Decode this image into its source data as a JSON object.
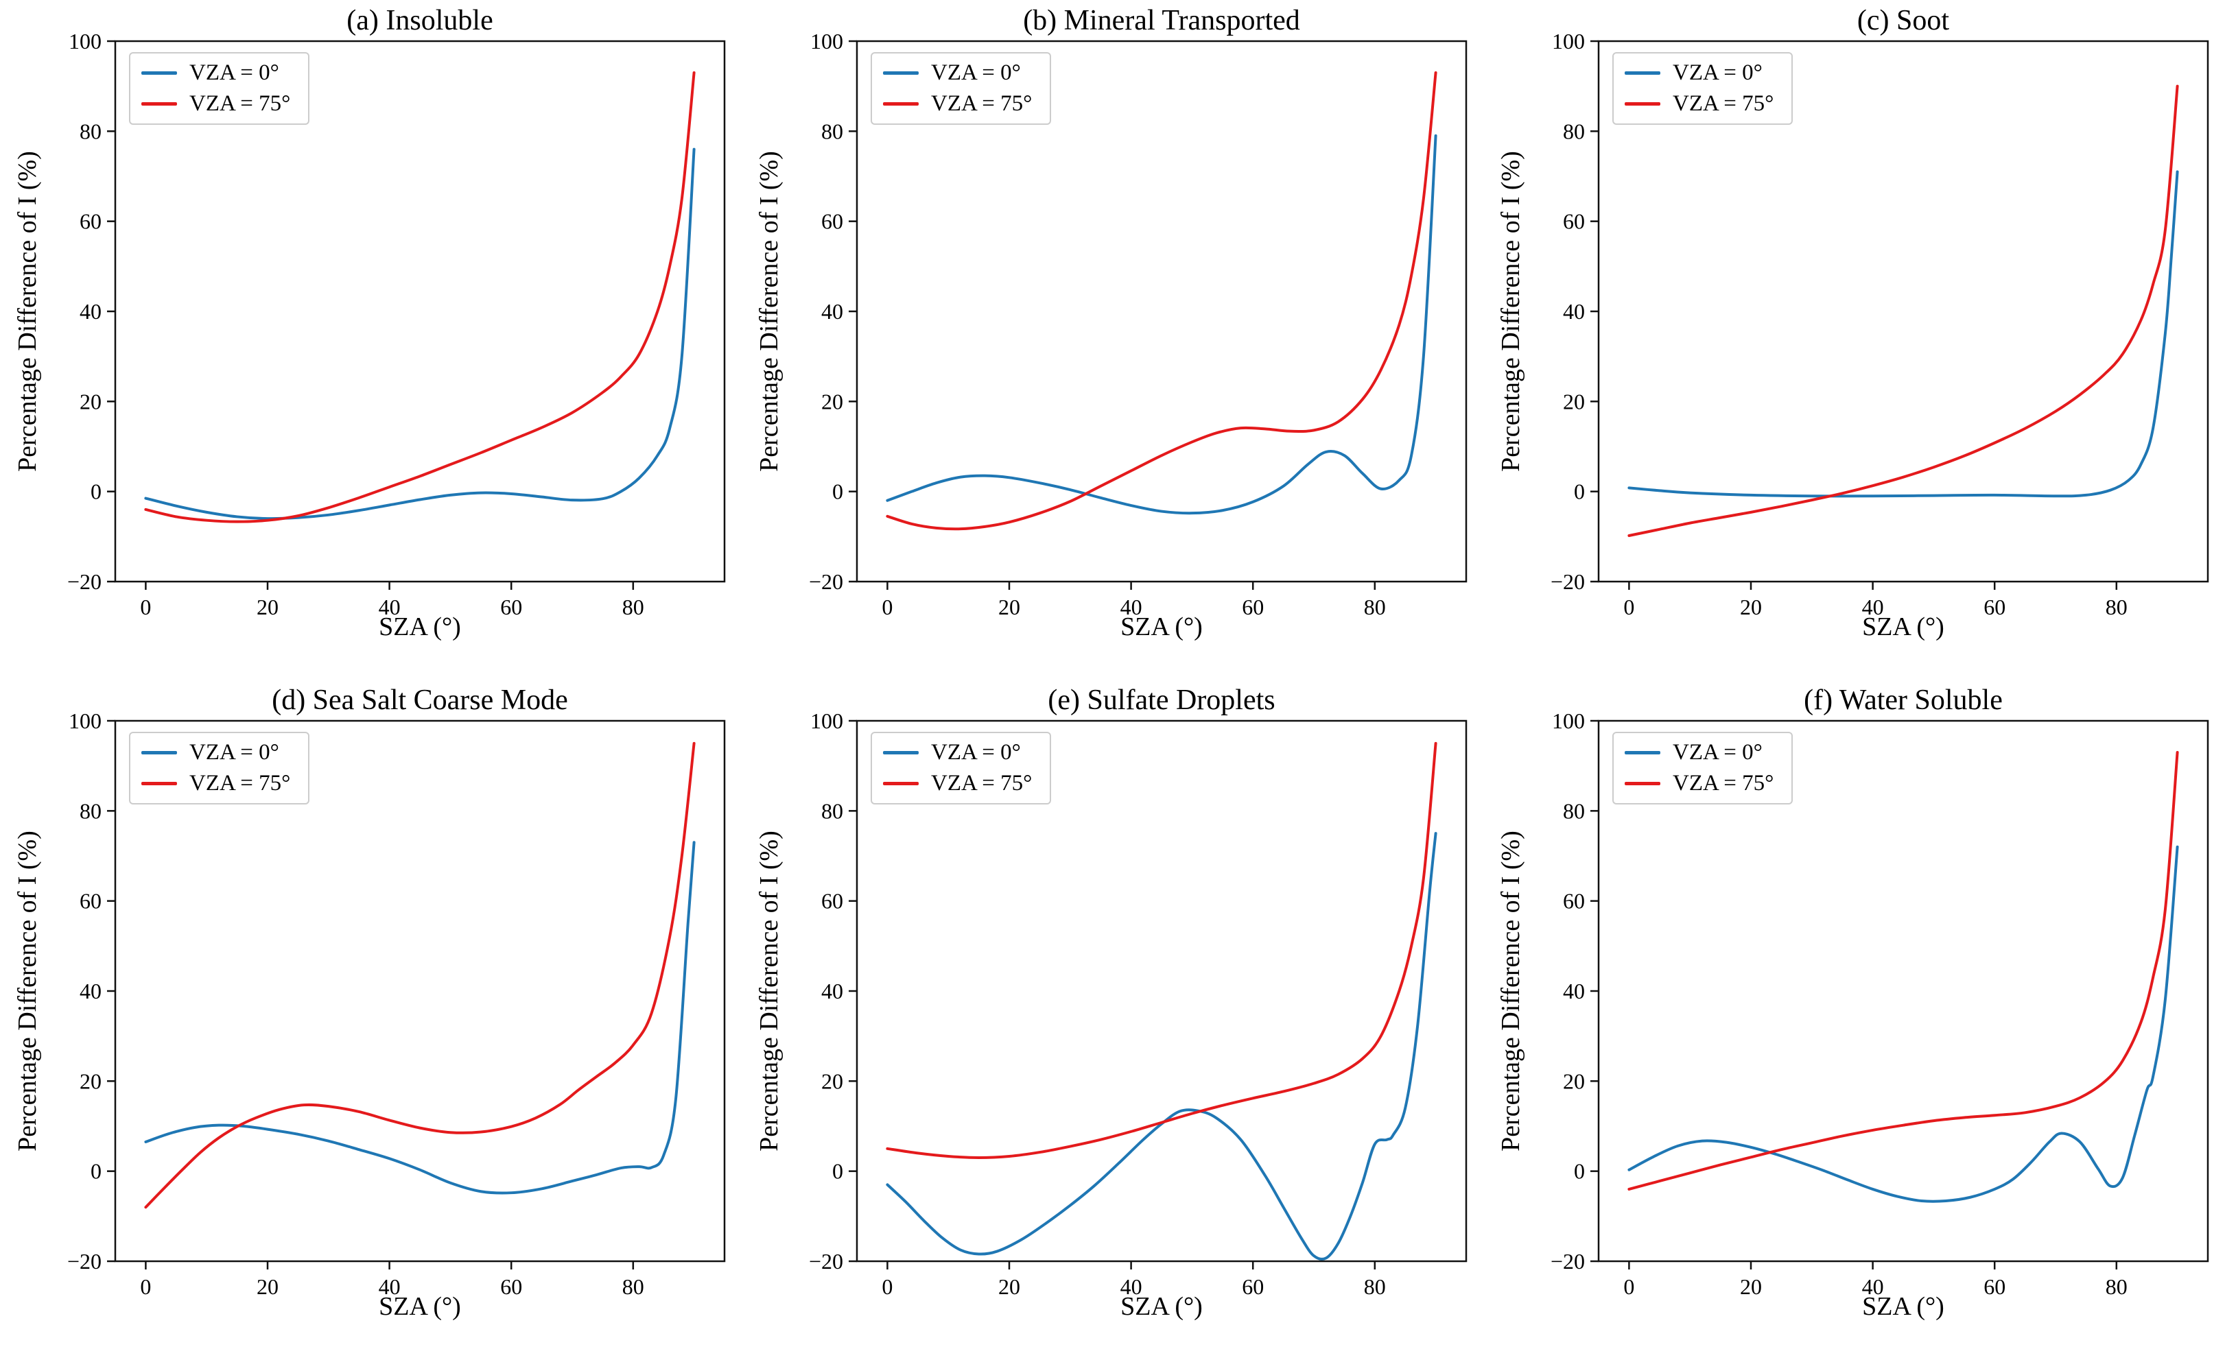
{
  "figure": {
    "ylabel": "Percentage Difference of I (%)",
    "xlabel": "SZA (°)",
    "colors": {
      "vza0": "#1f77b4",
      "vza75": "#e41a1c",
      "axis": "#111111"
    }
  },
  "chart_data": [
    {
      "type": "line",
      "title": "(a) Insoluble",
      "xlabel": "SZA (°)",
      "ylabel": "Percentage Difference of I (%)",
      "xlim": [
        -5,
        95
      ],
      "ylim": [
        -20,
        100
      ],
      "xticks": [
        0,
        20,
        40,
        60,
        80
      ],
      "yticks": [
        -20,
        0,
        20,
        40,
        60,
        80,
        100
      ],
      "grid": false,
      "legend_position": "upper left",
      "series": [
        {
          "name": "VZA = 0°",
          "color": "#1f77b4",
          "x": [
            0,
            5,
            10,
            15,
            20,
            25,
            30,
            35,
            40,
            45,
            50,
            55,
            60,
            65,
            70,
            75,
            78,
            81,
            84,
            86,
            88,
            90
          ],
          "y": [
            -1.5,
            -3.2,
            -4.6,
            -5.6,
            -6,
            -5.8,
            -5.2,
            -4.2,
            -3,
            -1.8,
            -0.8,
            -0.3,
            -0.5,
            -1.2,
            -1.9,
            -1.6,
            0,
            3,
            8,
            14,
            30,
            76
          ]
        },
        {
          "name": "VZA = 75°",
          "color": "#e41a1c",
          "x": [
            0,
            5,
            10,
            15,
            20,
            25,
            30,
            35,
            40,
            45,
            50,
            55,
            60,
            65,
            70,
            75,
            78,
            81,
            84,
            86,
            88,
            90
          ],
          "y": [
            -4,
            -5.6,
            -6.4,
            -6.7,
            -6.4,
            -5.4,
            -3.6,
            -1.4,
            1,
            3.4,
            6,
            8.6,
            11.4,
            14.2,
            17.5,
            22,
            25.5,
            30.5,
            40,
            50,
            65,
            93
          ]
        }
      ]
    },
    {
      "type": "line",
      "title": "(b) Mineral Transported",
      "xlabel": "SZA (°)",
      "ylabel": "Percentage Difference of I (%)",
      "xlim": [
        -5,
        95
      ],
      "ylim": [
        -20,
        100
      ],
      "xticks": [
        0,
        20,
        40,
        60,
        80
      ],
      "yticks": [
        -20,
        0,
        20,
        40,
        60,
        80,
        100
      ],
      "grid": false,
      "legend_position": "upper left",
      "series": [
        {
          "name": "VZA = 0°",
          "color": "#1f77b4",
          "x": [
            0,
            4,
            8,
            12,
            16,
            20,
            25,
            30,
            35,
            40,
            45,
            50,
            55,
            60,
            65,
            69,
            72,
            75,
            78,
            81,
            84,
            86,
            88,
            90
          ],
          "y": [
            -2,
            0,
            1.9,
            3.2,
            3.5,
            3.1,
            1.9,
            0.4,
            -1.4,
            -3.1,
            -4.4,
            -4.8,
            -4.2,
            -2.3,
            1.2,
            6,
            8.8,
            8,
            4,
            0.6,
            2.5,
            8,
            30,
            79
          ]
        },
        {
          "name": "VZA = 75°",
          "color": "#e41a1c",
          "x": [
            0,
            4,
            8,
            12,
            16,
            20,
            25,
            30,
            35,
            40,
            45,
            50,
            54,
            58,
            62,
            66,
            70,
            74,
            78,
            81,
            84,
            86,
            88,
            90
          ],
          "y": [
            -5.5,
            -7.2,
            -8.1,
            -8.3,
            -7.8,
            -6.8,
            -4.8,
            -2.2,
            1.2,
            4.6,
            8,
            11,
            13,
            14.1,
            13.9,
            13.4,
            13.6,
            15.5,
            20.5,
            27,
            37,
            48,
            65,
            93
          ]
        }
      ]
    },
    {
      "type": "line",
      "title": "(c) Soot",
      "xlabel": "SZA (°)",
      "ylabel": "Percentage Difference of I (%)",
      "xlim": [
        -5,
        95
      ],
      "ylim": [
        -20,
        100
      ],
      "xticks": [
        0,
        20,
        40,
        60,
        80
      ],
      "yticks": [
        -20,
        0,
        20,
        40,
        60,
        80,
        100
      ],
      "grid": false,
      "legend_position": "upper left",
      "series": [
        {
          "name": "VZA = 0°",
          "color": "#1f77b4",
          "x": [
            0,
            5,
            10,
            20,
            30,
            40,
            50,
            60,
            70,
            75,
            79,
            82,
            84,
            86,
            88,
            89,
            90
          ],
          "y": [
            0.8,
            0.2,
            -0.3,
            -0.8,
            -1,
            -1,
            -0.9,
            -0.8,
            -1,
            -0.8,
            0.3,
            2.5,
            6,
            14,
            35,
            52,
            71
          ]
        },
        {
          "name": "VZA = 75°",
          "color": "#e41a1c",
          "x": [
            0,
            5,
            10,
            15,
            20,
            25,
            30,
            35,
            40,
            45,
            50,
            55,
            60,
            65,
            70,
            74,
            78,
            81,
            84,
            86,
            88,
            90
          ],
          "y": [
            -9.8,
            -8.4,
            -7,
            -5.8,
            -4.6,
            -3.3,
            -1.9,
            -0.4,
            1.3,
            3.2,
            5.4,
            7.9,
            10.8,
            14,
            17.8,
            21.5,
            26,
            30.5,
            38,
            46,
            58,
            90
          ]
        }
      ]
    },
    {
      "type": "line",
      "title": "(d) Sea Salt Coarse Mode",
      "xlabel": "SZA (°)",
      "ylabel": "Percentage Difference of I (%)",
      "xlim": [
        -5,
        95
      ],
      "ylim": [
        -20,
        100
      ],
      "xticks": [
        0,
        20,
        40,
        60,
        80
      ],
      "yticks": [
        -20,
        0,
        20,
        40,
        60,
        80,
        100
      ],
      "grid": false,
      "legend_position": "upper left",
      "series": [
        {
          "name": "VZA = 0°",
          "color": "#1f77b4",
          "x": [
            0,
            4,
            8,
            12,
            16,
            20,
            25,
            30,
            35,
            40,
            45,
            50,
            55,
            60,
            65,
            70,
            74,
            78,
            81,
            83,
            85,
            87,
            89,
            90
          ],
          "y": [
            6.5,
            8.4,
            9.7,
            10.2,
            10,
            9.3,
            8.2,
            6.7,
            4.8,
            2.8,
            0.3,
            -2.6,
            -4.5,
            -4.8,
            -3.9,
            -2.2,
            -0.8,
            0.7,
            1,
            0.8,
            3.5,
            16,
            55,
            73
          ]
        },
        {
          "name": "VZA = 75°",
          "color": "#e41a1c",
          "x": [
            0,
            3,
            6,
            9,
            12,
            15,
            18,
            22,
            26,
            30,
            35,
            40,
            45,
            50,
            55,
            60,
            64,
            68,
            71,
            74,
            77,
            80,
            83,
            86,
            88,
            90
          ],
          "y": [
            -8,
            -3.8,
            0.3,
            4.2,
            7.4,
            9.9,
            11.8,
            13.7,
            14.7,
            14.4,
            13.2,
            11.3,
            9.6,
            8.6,
            8.7,
            9.9,
            11.8,
            14.8,
            18,
            21,
            24,
            28,
            35,
            52,
            70,
            95
          ]
        }
      ]
    },
    {
      "type": "line",
      "title": "(e) Sulfate Droplets",
      "xlabel": "SZA (°)",
      "ylabel": "Percentage Difference of I (%)",
      "xlim": [
        -5,
        95
      ],
      "ylim": [
        -20,
        100
      ],
      "xticks": [
        0,
        20,
        40,
        60,
        80
      ],
      "yticks": [
        -20,
        0,
        20,
        40,
        60,
        80,
        100
      ],
      "grid": false,
      "legend_position": "upper left",
      "series": [
        {
          "name": "VZA = 0°",
          "color": "#1f77b4",
          "x": [
            0,
            3,
            6,
            9,
            12,
            15,
            18,
            22,
            26,
            30,
            34,
            38,
            42,
            45,
            48,
            51,
            54,
            58,
            62,
            65,
            68,
            70,
            72,
            74,
            76,
            78,
            80,
            82,
            83,
            85,
            87,
            89,
            90
          ],
          "y": [
            -3,
            -6.8,
            -11,
            -14.8,
            -17.5,
            -18.4,
            -17.8,
            -15.2,
            -11.6,
            -7.6,
            -3.2,
            1.8,
            7,
            10.5,
            13.3,
            13.4,
            11.8,
            7,
            -1,
            -8,
            -15,
            -18.8,
            -19.3,
            -16,
            -10,
            -2.5,
            6,
            7,
            8,
            14,
            32,
            62,
            75
          ]
        },
        {
          "name": "VZA = 75°",
          "color": "#e41a1c",
          "x": [
            0,
            5,
            10,
            15,
            20,
            25,
            30,
            35,
            40,
            45,
            50,
            55,
            60,
            65,
            70,
            74,
            78,
            81,
            84,
            86,
            88,
            90
          ],
          "y": [
            5,
            4,
            3.3,
            3,
            3.3,
            4.2,
            5.5,
            7,
            8.8,
            10.8,
            12.8,
            14.6,
            16.2,
            17.7,
            19.5,
            21.5,
            25,
            30,
            40,
            50,
            65,
            95
          ]
        }
      ]
    },
    {
      "type": "line",
      "title": "(f) Water Soluble",
      "xlabel": "SZA (°)",
      "ylabel": "Percentage Difference of I (%)",
      "xlim": [
        -5,
        95
      ],
      "ylim": [
        -20,
        100
      ],
      "xticks": [
        0,
        20,
        40,
        60,
        80
      ],
      "yticks": [
        -20,
        0,
        20,
        40,
        60,
        80,
        100
      ],
      "grid": false,
      "legend_position": "upper left",
      "series": [
        {
          "name": "VZA = 0°",
          "color": "#1f77b4",
          "x": [
            0,
            4,
            8,
            12,
            16,
            20,
            24,
            28,
            32,
            36,
            40,
            44,
            48,
            52,
            56,
            60,
            63,
            66,
            69,
            71,
            74,
            77,
            79,
            81,
            83,
            85,
            86,
            88,
            90
          ],
          "y": [
            0.3,
            3.2,
            5.6,
            6.7,
            6.4,
            5.3,
            3.8,
            2,
            0.1,
            -2,
            -4,
            -5.6,
            -6.6,
            -6.6,
            -5.8,
            -4,
            -1.8,
            2,
            6.5,
            8.4,
            6.5,
            0.5,
            -3.3,
            -1.5,
            8,
            18,
            21,
            38,
            72
          ]
        },
        {
          "name": "VZA = 75°",
          "color": "#e41a1c",
          "x": [
            0,
            5,
            10,
            15,
            20,
            25,
            30,
            35,
            40,
            45,
            50,
            55,
            60,
            65,
            70,
            74,
            78,
            81,
            84,
            86,
            88,
            90
          ],
          "y": [
            -4,
            -2.2,
            -0.4,
            1.4,
            3.1,
            4.8,
            6.3,
            7.8,
            9.1,
            10.2,
            11.2,
            11.9,
            12.4,
            13,
            14.4,
            16.3,
            19.8,
            24.5,
            33,
            43,
            58,
            93
          ]
        }
      ]
    }
  ]
}
